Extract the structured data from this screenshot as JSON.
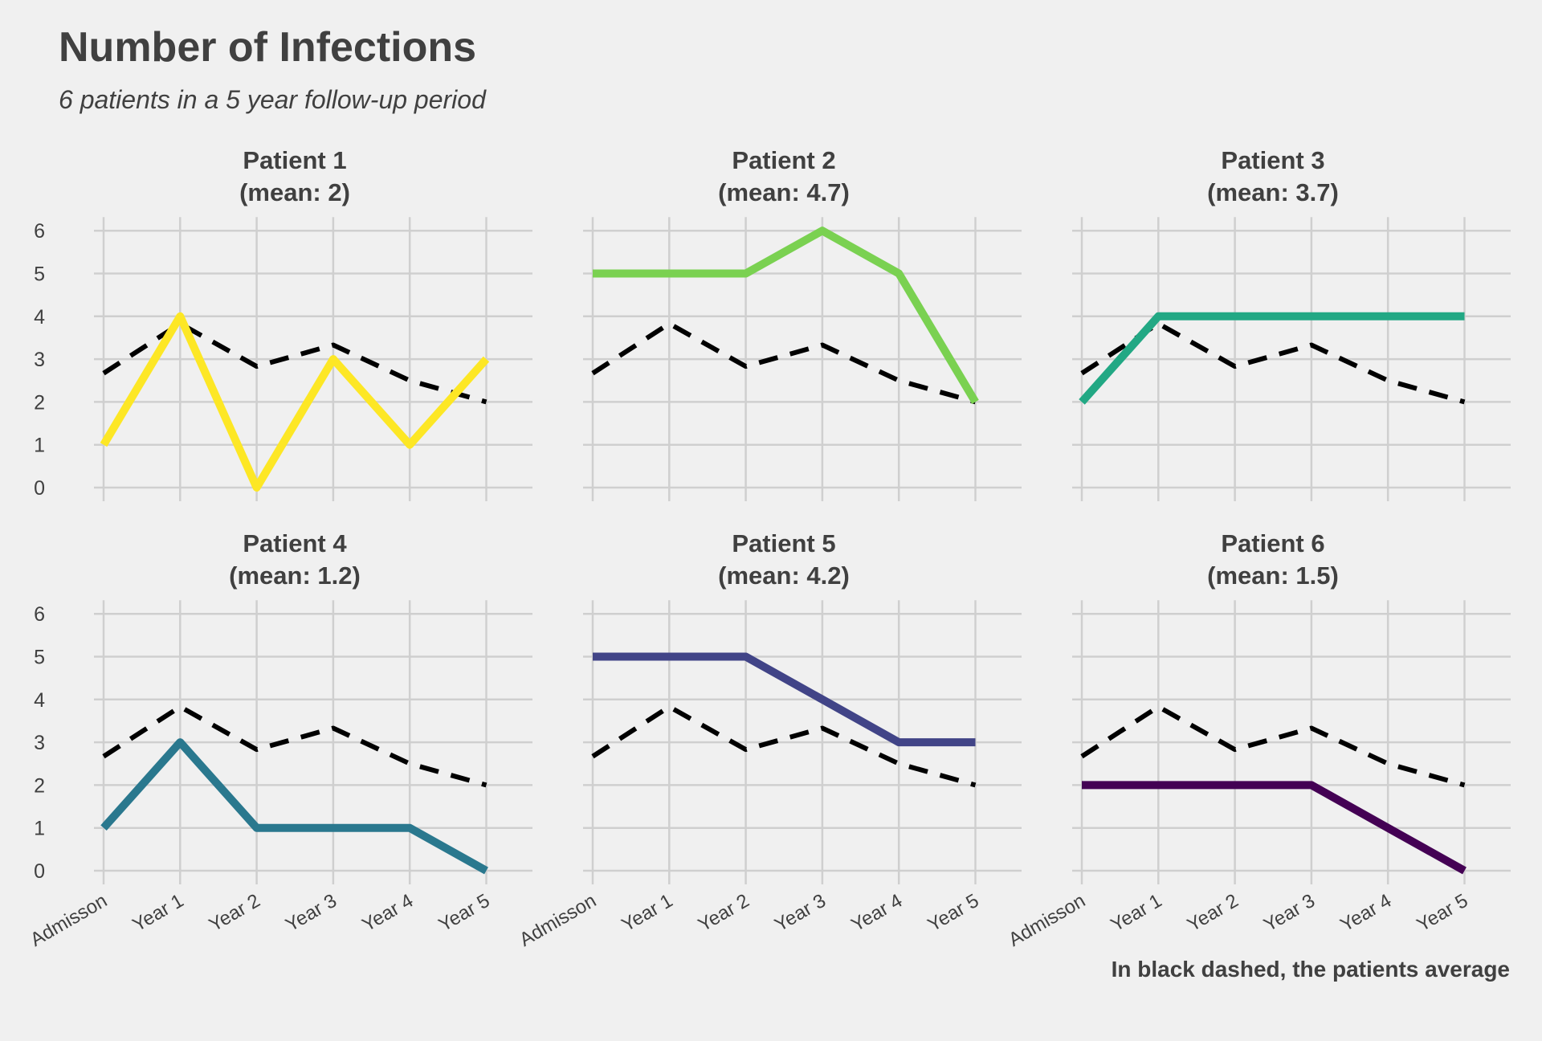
{
  "chart_data": {
    "type": "line",
    "title": "Number of Infections",
    "subtitle": "6 patients in a 5 year follow-up period",
    "caption": "In black dashed, the patients average",
    "x": [
      "Admisson",
      "Year 1",
      "Year 2",
      "Year 3",
      "Year 4",
      "Year 5"
    ],
    "ylim": [
      0,
      6
    ],
    "yticks": [
      0,
      1,
      2,
      3,
      4,
      5,
      6
    ],
    "grid": true,
    "average": {
      "style": "black dashed",
      "color": "#000000",
      "values": [
        2.67,
        3.83,
        2.83,
        3.33,
        2.5,
        2.0
      ]
    },
    "panels": [
      {
        "title_line1": "Patient 1",
        "title_line2": "(mean: 2)",
        "color": "#FDE725",
        "values": [
          1,
          4,
          0,
          3,
          1,
          3
        ]
      },
      {
        "title_line1": "Patient 2",
        "title_line2": "(mean: 4.7)",
        "color": "#7AD151",
        "values": [
          5,
          5,
          5,
          6,
          5,
          2
        ]
      },
      {
        "title_line1": "Patient 3",
        "title_line2": "(mean: 3.7)",
        "color": "#22A884",
        "values": [
          2,
          4,
          4,
          4,
          4,
          4
        ]
      },
      {
        "title_line1": "Patient 4",
        "title_line2": "(mean: 1.2)",
        "color": "#2A788E",
        "values": [
          1,
          3,
          1,
          1,
          1,
          0
        ]
      },
      {
        "title_line1": "Patient 5",
        "title_line2": "(mean: 4.2)",
        "color": "#414487",
        "values": [
          5,
          5,
          5,
          4,
          3,
          3
        ]
      },
      {
        "title_line1": "Patient 6",
        "title_line2": "(mean: 1.5)",
        "color": "#440154",
        "values": [
          2,
          2,
          2,
          2,
          1,
          0
        ]
      }
    ]
  }
}
